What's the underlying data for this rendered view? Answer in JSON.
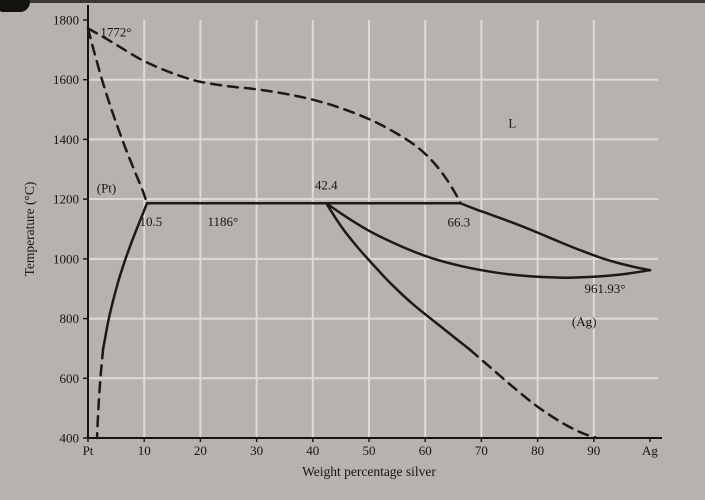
{
  "chart_data": {
    "type": "line",
    "title": "",
    "xlabel": "Weight percentage silver",
    "ylabel": "Temperature (°C)",
    "xlim": [
      0,
      100
    ],
    "ylim": [
      400,
      1800
    ],
    "x_ticks": [
      {
        "v": 0,
        "label": "Pt"
      },
      {
        "v": 10,
        "label": "10"
      },
      {
        "v": 20,
        "label": "20"
      },
      {
        "v": 30,
        "label": "30"
      },
      {
        "v": 40,
        "label": "40"
      },
      {
        "v": 50,
        "label": "50"
      },
      {
        "v": 60,
        "label": "60"
      },
      {
        "v": 70,
        "label": "70"
      },
      {
        "v": 80,
        "label": "80"
      },
      {
        "v": 90,
        "label": "90"
      },
      {
        "v": 100,
        "label": "Ag"
      }
    ],
    "y_ticks": [
      {
        "v": 400,
        "label": "400"
      },
      {
        "v": 600,
        "label": "600"
      },
      {
        "v": 800,
        "label": "800"
      },
      {
        "v": 1000,
        "label": "1000"
      },
      {
        "v": 1200,
        "label": "1200"
      },
      {
        "v": 1400,
        "label": "1400"
      },
      {
        "v": 1600,
        "label": "1600"
      },
      {
        "v": 1800,
        "label": "1800"
      }
    ],
    "grid": {
      "x_values": [
        10,
        20,
        30,
        40,
        50,
        60,
        70,
        80,
        90
      ],
      "y_values": [
        600,
        800,
        1000,
        1200,
        1400,
        1600
      ]
    },
    "colors": {
      "background": "#b6b3ae",
      "grid": "#dedbd5",
      "curve": "#1c1a18",
      "text": "#171513"
    },
    "series": [
      {
        "name": "pt-liquidus",
        "style": "dashed",
        "points": [
          [
            0,
            1772
          ],
          [
            3,
            1740
          ],
          [
            6,
            1706
          ],
          [
            9,
            1672
          ],
          [
            12,
            1645
          ],
          [
            16,
            1615
          ],
          [
            20,
            1593
          ],
          [
            25,
            1578
          ],
          [
            30,
            1568
          ],
          [
            35,
            1553
          ],
          [
            40,
            1533
          ],
          [
            45,
            1505
          ],
          [
            50,
            1468
          ],
          [
            54,
            1430
          ],
          [
            58,
            1383
          ],
          [
            61,
            1333
          ],
          [
            63.5,
            1275
          ],
          [
            65.5,
            1215
          ],
          [
            66.3,
            1186
          ]
        ]
      },
      {
        "name": "pt-solidus",
        "style": "dashed",
        "points": [
          [
            0,
            1772
          ],
          [
            1,
            1700
          ],
          [
            2.5,
            1600
          ],
          [
            4,
            1510
          ],
          [
            5.5,
            1430
          ],
          [
            7,
            1355
          ],
          [
            8.5,
            1285
          ],
          [
            9.8,
            1225
          ],
          [
            10.5,
            1186
          ]
        ]
      },
      {
        "name": "peritectic-isotherm",
        "style": "solid",
        "points": [
          [
            10.5,
            1186
          ],
          [
            66.3,
            1186
          ]
        ]
      },
      {
        "name": "ag-liquidus",
        "style": "solid",
        "points": [
          [
            66.3,
            1186
          ],
          [
            69,
            1166
          ],
          [
            72,
            1146
          ],
          [
            76,
            1118
          ],
          [
            80,
            1088
          ],
          [
            84,
            1056
          ],
          [
            88,
            1026
          ],
          [
            92,
            999
          ],
          [
            96,
            978
          ],
          [
            100,
            961.93
          ]
        ]
      },
      {
        "name": "ag-solidus",
        "style": "solid",
        "points": [
          [
            42.4,
            1186
          ],
          [
            46,
            1140
          ],
          [
            50,
            1094
          ],
          [
            55,
            1048
          ],
          [
            60,
            1010
          ],
          [
            65,
            982
          ],
          [
            70,
            962
          ],
          [
            75,
            948
          ],
          [
            80,
            940
          ],
          [
            85,
            937
          ],
          [
            90,
            940
          ],
          [
            95,
            948
          ],
          [
            100,
            961.93
          ]
        ]
      },
      {
        "name": "pt-solvus",
        "style": "solid",
        "points": [
          [
            10.5,
            1186
          ],
          [
            9.2,
            1125
          ],
          [
            7.8,
            1058
          ],
          [
            6.5,
            990
          ],
          [
            5.4,
            925
          ],
          [
            4.4,
            855
          ],
          [
            3.6,
            790
          ],
          [
            3,
            730
          ],
          [
            2.7,
            700
          ]
        ]
      },
      {
        "name": "pt-solvus-extension",
        "style": "dashed",
        "points": [
          [
            2.7,
            700
          ],
          [
            2.3,
            620
          ],
          [
            2,
            545
          ],
          [
            1.8,
            480
          ],
          [
            1.6,
            400
          ]
        ]
      },
      {
        "name": "ag-solvus",
        "style": "solid",
        "points": [
          [
            42.4,
            1186
          ],
          [
            45,
            1110
          ],
          [
            48,
            1038
          ],
          [
            51,
            975
          ],
          [
            54,
            915
          ],
          [
            58,
            845
          ],
          [
            62,
            785
          ],
          [
            66,
            725
          ],
          [
            68,
            695
          ]
        ]
      },
      {
        "name": "ag-solvus-extension",
        "style": "dashed",
        "points": [
          [
            68,
            695
          ],
          [
            72,
            630
          ],
          [
            76,
            565
          ],
          [
            80,
            505
          ],
          [
            84,
            455
          ],
          [
            87.5,
            420
          ],
          [
            90.5,
            400
          ]
        ]
      }
    ],
    "annotations": [
      {
        "text": "1772°",
        "x": 2.2,
        "y": 1745,
        "anchor": "start"
      },
      {
        "text": "L",
        "x": 75.5,
        "y": 1440,
        "anchor": "middle"
      },
      {
        "text": "(Pt)",
        "x": 3.3,
        "y": 1222,
        "anchor": "middle"
      },
      {
        "text": "10.5",
        "x": 11.2,
        "y": 1110,
        "anchor": "middle"
      },
      {
        "text": "1186°",
        "x": 24,
        "y": 1110,
        "anchor": "middle"
      },
      {
        "text": "42.4",
        "x": 42.4,
        "y": 1232,
        "anchor": "middle"
      },
      {
        "text": "66.3",
        "x": 66,
        "y": 1108,
        "anchor": "middle"
      },
      {
        "text": "961.93°",
        "x": 92,
        "y": 885,
        "anchor": "middle"
      },
      {
        "text": "(Ag)",
        "x": 88.3,
        "y": 775,
        "anchor": "middle"
      }
    ],
    "key_values": {
      "pt_melting_point_c": 1772,
      "ag_melting_point_c": 961.93,
      "peritectic_temperature_c": 1186,
      "peritectic_compositions_wt_pct_ag": [
        10.5,
        42.4,
        66.3
      ]
    }
  }
}
